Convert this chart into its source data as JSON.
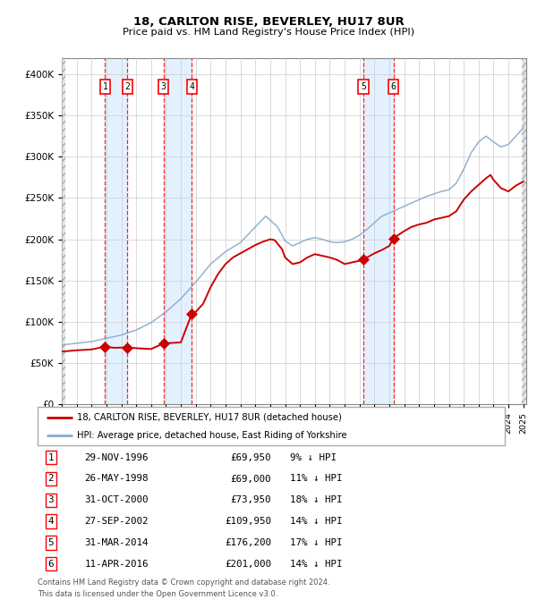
{
  "title": "18, CARLTON RISE, BEVERLEY, HU17 8UR",
  "subtitle": "Price paid vs. HM Land Registry's House Price Index (HPI)",
  "transactions": [
    {
      "num": 1,
      "date_decimal": 1996.91,
      "price": 69950,
      "pct": 9,
      "label": "29-NOV-1996"
    },
    {
      "num": 2,
      "date_decimal": 1998.4,
      "price": 69000,
      "pct": 11,
      "label": "26-MAY-1998"
    },
    {
      "num": 3,
      "date_decimal": 2000.84,
      "price": 73950,
      "pct": 18,
      "label": "31-OCT-2000"
    },
    {
      "num": 4,
      "date_decimal": 2002.74,
      "price": 109950,
      "pct": 14,
      "label": "27-SEP-2002"
    },
    {
      "num": 5,
      "date_decimal": 2014.25,
      "price": 176200,
      "pct": 17,
      "label": "31-MAR-2014"
    },
    {
      "num": 6,
      "date_decimal": 2016.28,
      "price": 201000,
      "pct": 14,
      "label": "11-APR-2016"
    }
  ],
  "legend_property": "18, CARLTON RISE, BEVERLEY, HU17 8UR (detached house)",
  "legend_hpi": "HPI: Average price, detached house, East Riding of Yorkshire",
  "footer1": "Contains HM Land Registry data © Crown copyright and database right 2024.",
  "footer2": "This data is licensed under the Open Government Licence v3.0.",
  "property_color": "#cc0000",
  "hpi_color": "#88aacc",
  "span_color": "#ddeeff",
  "hatch_color": "#dddddd",
  "ylim": [
    0,
    420000
  ],
  "ytick_vals": [
    0,
    50000,
    100000,
    150000,
    200000,
    250000,
    300000,
    350000,
    400000
  ],
  "ytick_labels": [
    "£0",
    "£50K",
    "£100K",
    "£150K",
    "£200K",
    "£250K",
    "£300K",
    "£350K",
    "£400K"
  ],
  "xmin": 1994.0,
  "xmax": 2025.2,
  "hpi_anchors": [
    [
      1994.0,
      72000
    ],
    [
      1995.0,
      74000
    ],
    [
      1996.0,
      76000
    ],
    [
      1997.0,
      80000
    ],
    [
      1998.0,
      84000
    ],
    [
      1999.0,
      90000
    ],
    [
      2000.0,
      99000
    ],
    [
      2001.0,
      112000
    ],
    [
      2002.0,
      128000
    ],
    [
      2003.0,
      148000
    ],
    [
      2004.0,
      170000
    ],
    [
      2005.0,
      185000
    ],
    [
      2006.0,
      196000
    ],
    [
      2007.0,
      215000
    ],
    [
      2007.7,
      228000
    ],
    [
      2008.5,
      215000
    ],
    [
      2009.0,
      198000
    ],
    [
      2009.5,
      192000
    ],
    [
      2010.0,
      196000
    ],
    [
      2010.5,
      200000
    ],
    [
      2011.0,
      202000
    ],
    [
      2011.5,
      200000
    ],
    [
      2012.0,
      197000
    ],
    [
      2012.5,
      196000
    ],
    [
      2013.0,
      197000
    ],
    [
      2013.5,
      200000
    ],
    [
      2014.0,
      205000
    ],
    [
      2014.5,
      212000
    ],
    [
      2015.0,
      220000
    ],
    [
      2015.5,
      228000
    ],
    [
      2016.0,
      232000
    ],
    [
      2016.5,
      236000
    ],
    [
      2017.0,
      240000
    ],
    [
      2017.5,
      244000
    ],
    [
      2018.0,
      248000
    ],
    [
      2018.5,
      252000
    ],
    [
      2019.0,
      255000
    ],
    [
      2019.5,
      258000
    ],
    [
      2020.0,
      260000
    ],
    [
      2020.5,
      268000
    ],
    [
      2021.0,
      285000
    ],
    [
      2021.5,
      305000
    ],
    [
      2022.0,
      318000
    ],
    [
      2022.5,
      325000
    ],
    [
      2023.0,
      318000
    ],
    [
      2023.5,
      312000
    ],
    [
      2024.0,
      315000
    ],
    [
      2024.5,
      325000
    ],
    [
      2025.0,
      335000
    ]
  ],
  "prop_anchors": [
    [
      1994.0,
      64000
    ],
    [
      1995.0,
      65500
    ],
    [
      1996.0,
      66500
    ],
    [
      1996.91,
      69950
    ],
    [
      1997.5,
      68500
    ],
    [
      1998.4,
      69000
    ],
    [
      1999.0,
      68000
    ],
    [
      2000.0,
      67000
    ],
    [
      2000.84,
      73950
    ],
    [
      2001.5,
      74500
    ],
    [
      2002.0,
      75000
    ],
    [
      2002.74,
      109950
    ],
    [
      2003.0,
      112000
    ],
    [
      2003.5,
      122000
    ],
    [
      2004.0,
      142000
    ],
    [
      2004.5,
      158000
    ],
    [
      2005.0,
      170000
    ],
    [
      2005.5,
      178000
    ],
    [
      2006.0,
      183000
    ],
    [
      2006.5,
      188000
    ],
    [
      2007.0,
      193000
    ],
    [
      2007.5,
      197000
    ],
    [
      2008.0,
      200000
    ],
    [
      2008.3,
      199000
    ],
    [
      2008.8,
      188000
    ],
    [
      2009.0,
      178000
    ],
    [
      2009.5,
      170000
    ],
    [
      2010.0,
      172000
    ],
    [
      2010.5,
      178000
    ],
    [
      2011.0,
      182000
    ],
    [
      2011.5,
      180000
    ],
    [
      2012.0,
      178000
    ],
    [
      2012.5,
      175000
    ],
    [
      2013.0,
      170000
    ],
    [
      2013.5,
      172000
    ],
    [
      2014.0,
      174000
    ],
    [
      2014.25,
      176200
    ],
    [
      2014.5,
      178000
    ],
    [
      2015.0,
      183000
    ],
    [
      2015.5,
      187000
    ],
    [
      2016.0,
      192000
    ],
    [
      2016.28,
      201000
    ],
    [
      2016.5,
      204000
    ],
    [
      2017.0,
      210000
    ],
    [
      2017.5,
      215000
    ],
    [
      2018.0,
      218000
    ],
    [
      2018.5,
      220000
    ],
    [
      2019.0,
      224000
    ],
    [
      2019.5,
      226000
    ],
    [
      2020.0,
      228000
    ],
    [
      2020.5,
      234000
    ],
    [
      2021.0,
      248000
    ],
    [
      2021.5,
      258000
    ],
    [
      2022.0,
      266000
    ],
    [
      2022.5,
      274000
    ],
    [
      2022.8,
      278000
    ],
    [
      2023.0,
      272000
    ],
    [
      2023.5,
      262000
    ],
    [
      2024.0,
      258000
    ],
    [
      2024.5,
      265000
    ],
    [
      2025.0,
      270000
    ]
  ]
}
